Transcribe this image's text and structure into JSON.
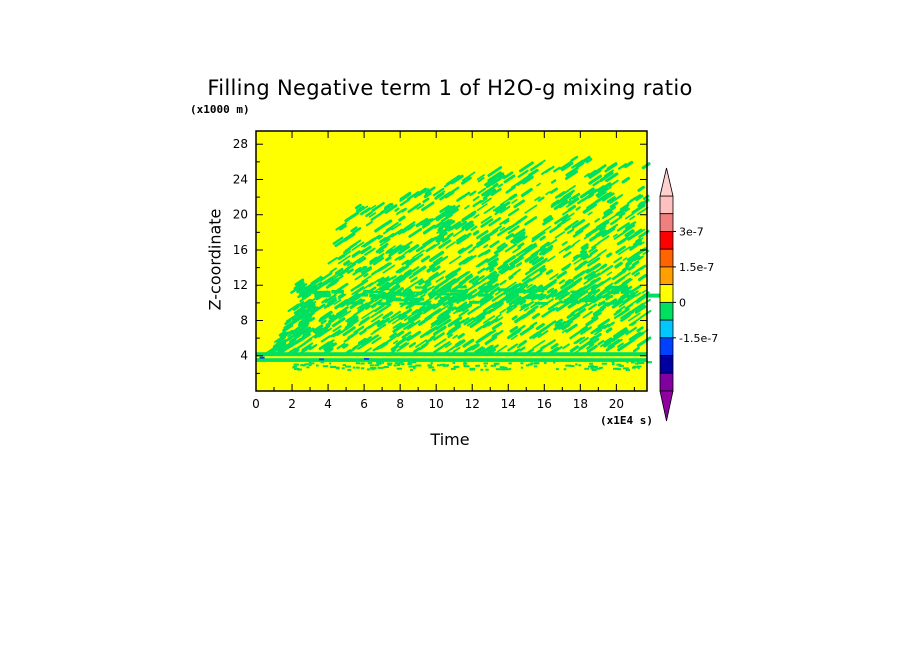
{
  "chart_data": {
    "type": "heatmap",
    "title": "Filling Negative term 1 of H2O-g mixing ratio",
    "xlabel": "Time",
    "ylabel": "Z-coordinate",
    "x_multiplier": "(x1E4 s)",
    "y_multiplier": "(x1000 m)",
    "xlim": [
      0,
      21.7
    ],
    "ylim": [
      0,
      29.5
    ],
    "x_ticks": [
      "0",
      "2",
      "4",
      "6",
      "8",
      "10",
      "12",
      "14",
      "16",
      "18",
      "20"
    ],
    "y_ticks": [
      "4",
      "8",
      "12",
      "16",
      "20",
      "24",
      "28"
    ],
    "background_value": 0,
    "background_color": "#ffff00",
    "field": {
      "description_levels": "green = slightly negative (just below 0)",
      "low_band": {
        "z_range": [
          3.3,
          4.4
        ],
        "t_range": [
          0,
          21.7
        ],
        "value": -5e-08
      },
      "upper_region_top_z": [
        [
          0,
          4.2
        ],
        [
          1,
          4.6
        ],
        [
          2,
          9
        ],
        [
          2.2,
          12.5
        ],
        [
          4,
          13
        ],
        [
          5,
          21
        ],
        [
          8,
          22
        ],
        [
          10,
          23.5
        ],
        [
          12,
          24.5
        ],
        [
          14,
          25.5
        ],
        [
          16,
          26
        ],
        [
          18,
          26.5
        ],
        [
          20,
          26
        ],
        [
          21.7,
          26
        ]
      ]
    },
    "colorbar": {
      "labels": [
        "3e-7",
        "1.5e-7",
        "0",
        "-1.5e-7"
      ],
      "colors": [
        "#ffc0c0",
        "#f08080",
        "#ff0000",
        "#ff6400",
        "#ffa000",
        "#ffff00",
        "#00e060",
        "#00c8ff",
        "#0040ff",
        "#0000a0",
        "#8000a0"
      ],
      "over_color": "#ffd0d0",
      "under_color": "#9000a0"
    }
  }
}
